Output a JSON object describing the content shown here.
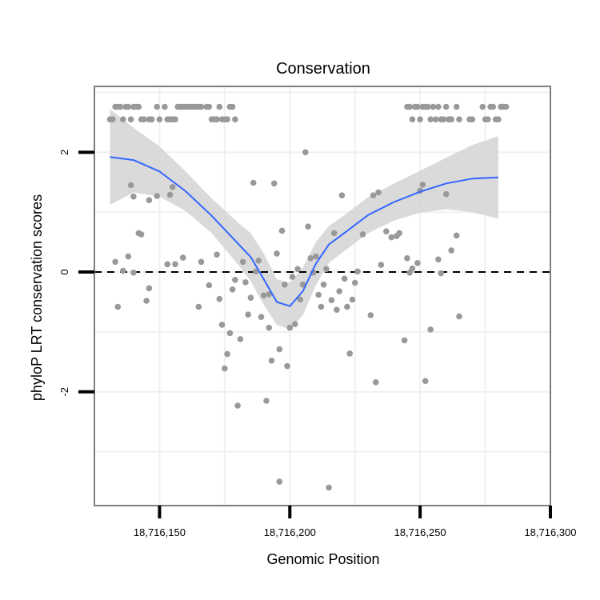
{
  "chart_data": {
    "type": "scatter",
    "title": "Conservation",
    "xlabel": "Genomic Position",
    "ylabel": "phyloP LRT conservation scores",
    "xlim": [
      18716125,
      18716300
    ],
    "ylim": [
      -3.9,
      3.1
    ],
    "x_ticks": [
      18716150,
      18716200,
      18716250,
      18716300
    ],
    "x_tick_labels": [
      "18,716,150",
      "18,716,200",
      "18,716,250",
      "18,716,300"
    ],
    "y_ticks": [
      -2,
      0,
      2
    ],
    "y_tick_labels": [
      "-2",
      "0",
      "2"
    ],
    "grid": true,
    "reference_line": {
      "y": 0,
      "style": "dashed"
    },
    "colors": {
      "points": "#999999",
      "smooth_line": "#3366ff",
      "confidence_band": "#d4d4d4",
      "panel_border": "#7f7f7f",
      "grid": "#f0f0f0"
    },
    "series": [
      {
        "type": "points",
        "points": [
          [
            18716131,
            2.55
          ],
          [
            18716132,
            2.55
          ],
          [
            18716133,
            2.76
          ],
          [
            18716134,
            2.76
          ],
          [
            18716135,
            2.76
          ],
          [
            18716136,
            2.55
          ],
          [
            18716137,
            2.76
          ],
          [
            18716138,
            2.76
          ],
          [
            18716139,
            2.55
          ],
          [
            18716140,
            2.76
          ],
          [
            18716141,
            2.76
          ],
          [
            18716142,
            2.76
          ],
          [
            18716143,
            2.55
          ],
          [
            18716144,
            2.55
          ],
          [
            18716146,
            2.55
          ],
          [
            18716147,
            2.55
          ],
          [
            18716149,
            2.76
          ],
          [
            18716150,
            2.55
          ],
          [
            18716152,
            2.76
          ],
          [
            18716153,
            2.55
          ],
          [
            18716154,
            2.55
          ],
          [
            18716155,
            2.55
          ],
          [
            18716156,
            2.55
          ],
          [
            18716157,
            2.76
          ],
          [
            18716158,
            2.76
          ],
          [
            18716159,
            2.76
          ],
          [
            18716160,
            2.76
          ],
          [
            18716161,
            2.76
          ],
          [
            18716162,
            2.76
          ],
          [
            18716163,
            2.76
          ],
          [
            18716164,
            2.76
          ],
          [
            18716165,
            2.76
          ],
          [
            18716166,
            2.76
          ],
          [
            18716168,
            2.76
          ],
          [
            18716169,
            2.76
          ],
          [
            18716170,
            2.55
          ],
          [
            18716171,
            2.55
          ],
          [
            18716172,
            2.55
          ],
          [
            18716173,
            2.76
          ],
          [
            18716174,
            2.55
          ],
          [
            18716175,
            2.55
          ],
          [
            18716176,
            2.55
          ],
          [
            18716177,
            2.76
          ],
          [
            18716178,
            2.76
          ],
          [
            18716179,
            2.55
          ],
          [
            18716245,
            2.76
          ],
          [
            18716246,
            2.76
          ],
          [
            18716247,
            2.55
          ],
          [
            18716248,
            2.76
          ],
          [
            18716249,
            2.76
          ],
          [
            18716250,
            2.55
          ],
          [
            18716251,
            2.76
          ],
          [
            18716252,
            2.76
          ],
          [
            18716253,
            2.76
          ],
          [
            18716254,
            2.55
          ],
          [
            18716255,
            2.76
          ],
          [
            18716256,
            2.55
          ],
          [
            18716257,
            2.76
          ],
          [
            18716258,
            2.55
          ],
          [
            18716259,
            2.55
          ],
          [
            18716260,
            2.76
          ],
          [
            18716261,
            2.55
          ],
          [
            18716262,
            2.55
          ],
          [
            18716264,
            2.76
          ],
          [
            18716265,
            2.55
          ],
          [
            18716269,
            2.55
          ],
          [
            18716270,
            2.55
          ],
          [
            18716274,
            2.76
          ],
          [
            18716275,
            2.55
          ],
          [
            18716276,
            2.55
          ],
          [
            18716277,
            2.76
          ],
          [
            18716278,
            2.76
          ],
          [
            18716279,
            2.55
          ],
          [
            18716280,
            2.55
          ],
          [
            18716281,
            2.76
          ],
          [
            18716282,
            2.76
          ],
          [
            18716283,
            2.76
          ],
          [
            18716139,
            1.45
          ],
          [
            18716140,
            1.26
          ],
          [
            18716142,
            0.65
          ],
          [
            18716143,
            0.63
          ],
          [
            18716146,
            1.2
          ],
          [
            18716149,
            1.27
          ],
          [
            18716154,
            1.29
          ],
          [
            18716155,
            1.42
          ],
          [
            18716153,
            0.13
          ],
          [
            18716156,
            0.13
          ],
          [
            18716159,
            0.24
          ],
          [
            18716133,
            0.17
          ],
          [
            18716134,
            -0.58
          ],
          [
            18716136,
            0.02
          ],
          [
            18716138,
            0.26
          ],
          [
            18716140,
            -0.01
          ],
          [
            18716145,
            -0.48
          ],
          [
            18716146,
            -0.27
          ],
          [
            18716165,
            -0.58
          ],
          [
            18716166,
            0.17
          ],
          [
            18716169,
            -0.22
          ],
          [
            18716172,
            0.29
          ],
          [
            18716173,
            -0.45
          ],
          [
            18716174,
            -0.88
          ],
          [
            18716175,
            -1.61
          ],
          [
            18716176,
            -1.37
          ],
          [
            18716177,
            -1.02
          ],
          [
            18716178,
            -0.29
          ],
          [
            18716179,
            -0.13
          ],
          [
            18716180,
            -2.23
          ],
          [
            18716181,
            -1.12
          ],
          [
            18716182,
            0.17
          ],
          [
            18716183,
            -0.17
          ],
          [
            18716184,
            -0.71
          ],
          [
            18716185,
            -0.43
          ],
          [
            18716186,
            1.49
          ],
          [
            18716187,
            0.01
          ],
          [
            18716188,
            0.19
          ],
          [
            18716189,
            -0.75
          ],
          [
            18716190,
            -0.39
          ],
          [
            18716191,
            -2.15
          ],
          [
            18716192,
            -0.93
          ],
          [
            18716193,
            -1.48
          ],
          [
            18716194,
            1.48
          ],
          [
            18716195,
            0.31
          ],
          [
            18716196,
            -1.29
          ],
          [
            18716197,
            0.69
          ],
          [
            18716198,
            -0.21
          ],
          [
            18716199,
            -1.57
          ],
          [
            18716200,
            -0.93
          ],
          [
            18716201,
            -0.08
          ],
          [
            18716202,
            -0.87
          ],
          [
            18716203,
            0.05
          ],
          [
            18716204,
            -0.46
          ],
          [
            18716205,
            -0.21
          ],
          [
            18716206,
            2.0
          ],
          [
            18716207,
            0.76
          ],
          [
            18716208,
            0.23
          ],
          [
            18716209,
            -0.01
          ],
          [
            18716210,
            0.26
          ],
          [
            18716211,
            -0.38
          ],
          [
            18716212,
            -0.58
          ],
          [
            18716213,
            -0.21
          ],
          [
            18716214,
            0.05
          ],
          [
            18716215,
            -3.6
          ],
          [
            18716216,
            -0.47
          ],
          [
            18716217,
            0.65
          ],
          [
            18716218,
            -0.63
          ],
          [
            18716219,
            -0.32
          ],
          [
            18716220,
            1.28
          ],
          [
            18716221,
            -0.11
          ],
          [
            18716222,
            -0.58
          ],
          [
            18716223,
            -1.36
          ],
          [
            18716224,
            -0.46
          ],
          [
            18716225,
            -0.18
          ],
          [
            18716226,
            0.01
          ],
          [
            18716228,
            0.63
          ],
          [
            18716231,
            -0.72
          ],
          [
            18716232,
            1.28
          ],
          [
            18716233,
            -1.84
          ],
          [
            18716234,
            1.33
          ],
          [
            18716235,
            0.12
          ],
          [
            18716237,
            0.68
          ],
          [
            18716239,
            0.58
          ],
          [
            18716241,
            0.6
          ],
          [
            18716242,
            0.65
          ],
          [
            18716244,
            -1.14
          ],
          [
            18716245,
            0.23
          ],
          [
            18716246,
            -0.01
          ],
          [
            18716247,
            0.06
          ],
          [
            18716249,
            0.15
          ],
          [
            18716250,
            1.36
          ],
          [
            18716251,
            1.46
          ],
          [
            18716252,
            -1.82
          ],
          [
            18716254,
            -0.96
          ],
          [
            18716257,
            0.21
          ],
          [
            18716258,
            -0.02
          ],
          [
            18716260,
            1.3
          ],
          [
            18716262,
            0.36
          ],
          [
            18716264,
            0.61
          ],
          [
            18716265,
            -0.74
          ],
          [
            18716196,
            -3.5
          ],
          [
            18716192,
            -0.37
          ]
        ]
      },
      {
        "type": "smooth",
        "x": [
          18716131,
          18716140,
          18716150,
          18716160,
          18716170,
          18716180,
          18716185,
          18716190,
          18716195,
          18716200,
          18716205,
          18716210,
          18716215,
          18716220,
          18716230,
          18716240,
          18716250,
          18716260,
          18716270,
          18716280
        ],
        "y": [
          1.92,
          1.87,
          1.68,
          1.35,
          0.94,
          0.48,
          0.25,
          -0.12,
          -0.5,
          -0.57,
          -0.32,
          0.14,
          0.46,
          0.62,
          0.95,
          1.17,
          1.34,
          1.48,
          1.56,
          1.58
        ],
        "lower": [
          1.12,
          1.33,
          1.26,
          1.02,
          0.65,
          0.13,
          -0.15,
          -0.55,
          -0.88,
          -0.96,
          -0.72,
          -0.22,
          0.15,
          0.32,
          0.65,
          0.86,
          0.99,
          1.05,
          1.0,
          0.89
        ],
        "upper": [
          2.72,
          2.41,
          2.1,
          1.68,
          1.23,
          0.83,
          0.65,
          0.31,
          -0.12,
          -0.18,
          0.08,
          0.5,
          0.77,
          0.92,
          1.25,
          1.48,
          1.69,
          1.91,
          2.12,
          2.27
        ]
      }
    ]
  }
}
